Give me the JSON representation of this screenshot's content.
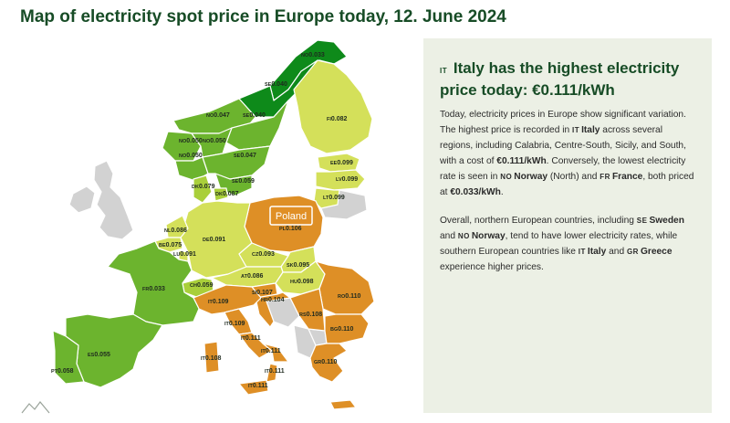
{
  "title": "Map of electricity spot price in Europe today, 12. June 2024",
  "colors": {
    "dark_green": "#0e8a1a",
    "green": "#6cb42e",
    "light_green": "#a9cf3a",
    "yellow_green": "#d4e05a",
    "orange": "#de8f26",
    "no_data": "#d2d2d2",
    "panel_bg": "#ecf0e5",
    "title": "#174c26"
  },
  "map": {
    "tooltip": "Poland",
    "regions": [
      {
        "code": "NO",
        "price": "0.033"
      },
      {
        "code": "SE",
        "price": "0.040"
      },
      {
        "code": "NO",
        "price": "0.047"
      },
      {
        "code": "SE",
        "price": "0.040"
      },
      {
        "code": "FI",
        "price": "0.082"
      },
      {
        "code": "NO",
        "price": "0.050"
      },
      {
        "code": "NO",
        "price": "0.050"
      },
      {
        "code": "NO",
        "price": "0.050"
      },
      {
        "code": "SE",
        "price": "0.047"
      },
      {
        "code": "SE",
        "price": "0.059"
      },
      {
        "code": "EE",
        "price": "0.099"
      },
      {
        "code": "LV",
        "price": "0.099"
      },
      {
        "code": "LT",
        "price": "0.099"
      },
      {
        "code": "DK",
        "price": "0.079"
      },
      {
        "code": "DK",
        "price": "0.087"
      },
      {
        "code": "PL",
        "price": "0.106"
      },
      {
        "code": "NL",
        "price": "0.086"
      },
      {
        "code": "DE",
        "price": "0.091"
      },
      {
        "code": "BE",
        "price": "0.075"
      },
      {
        "code": "LU",
        "price": "0.091"
      },
      {
        "code": "CZ",
        "price": "0.093"
      },
      {
        "code": "SK",
        "price": "0.095"
      },
      {
        "code": "AT",
        "price": "0.086"
      },
      {
        "code": "HU",
        "price": "0.098"
      },
      {
        "code": "FR",
        "price": "0.033"
      },
      {
        "code": "CH",
        "price": "0.059"
      },
      {
        "code": "SI",
        "price": "0.107"
      },
      {
        "code": "HR",
        "price": "0.104"
      },
      {
        "code": "RO",
        "price": "0.110"
      },
      {
        "code": "RS",
        "price": "0.108"
      },
      {
        "code": "BG",
        "price": "0.110"
      },
      {
        "code": "GR",
        "price": "0.110"
      },
      {
        "code": "IT",
        "price": "0.109"
      },
      {
        "code": "IT",
        "price": "0.109"
      },
      {
        "code": "IT",
        "price": "0.111"
      },
      {
        "code": "IT",
        "price": "0.111"
      },
      {
        "code": "IT",
        "price": "0.108"
      },
      {
        "code": "IT",
        "price": "0.111"
      },
      {
        "code": "IT",
        "price": "0.111"
      },
      {
        "code": "ES",
        "price": "0.055"
      },
      {
        "code": "PT",
        "price": "0.058"
      }
    ]
  },
  "panel": {
    "heading_flag": "IT",
    "heading": "Italy has the highest electricity price today: €0.111/kWh",
    "p1": {
      "a": "Today, electricity prices in Europe show significant variation. The highest price is recorded in ",
      "flag_it": "IT",
      "italy": "Italy",
      "b": " across several regions, including Calabria, Centre-South, Sicily, and South, with a cost of ",
      "cost_high": "€0.111/kWh",
      "c": ". Conversely, the lowest electricity rate is seen in ",
      "flag_no": "NO",
      "norway": "Norway",
      "d": " (North) and ",
      "flag_fr": "FR",
      "france": "France",
      "e": ", both priced at ",
      "cost_low": "€0.033/kWh",
      "f": "."
    },
    "p2": {
      "a": "Overall, northern European countries, including ",
      "flag_se": "SE",
      "sweden": "Sweden",
      "b": " and ",
      "flag_no": "NO",
      "norway": "Norway",
      "c": ", tend to have lower electricity rates, while southern European countries like ",
      "flag_it": "IT",
      "italy": "Italy",
      "d": " and ",
      "flag_gr": "GR",
      "greece": "Greece",
      "e": " experience higher prices."
    }
  }
}
